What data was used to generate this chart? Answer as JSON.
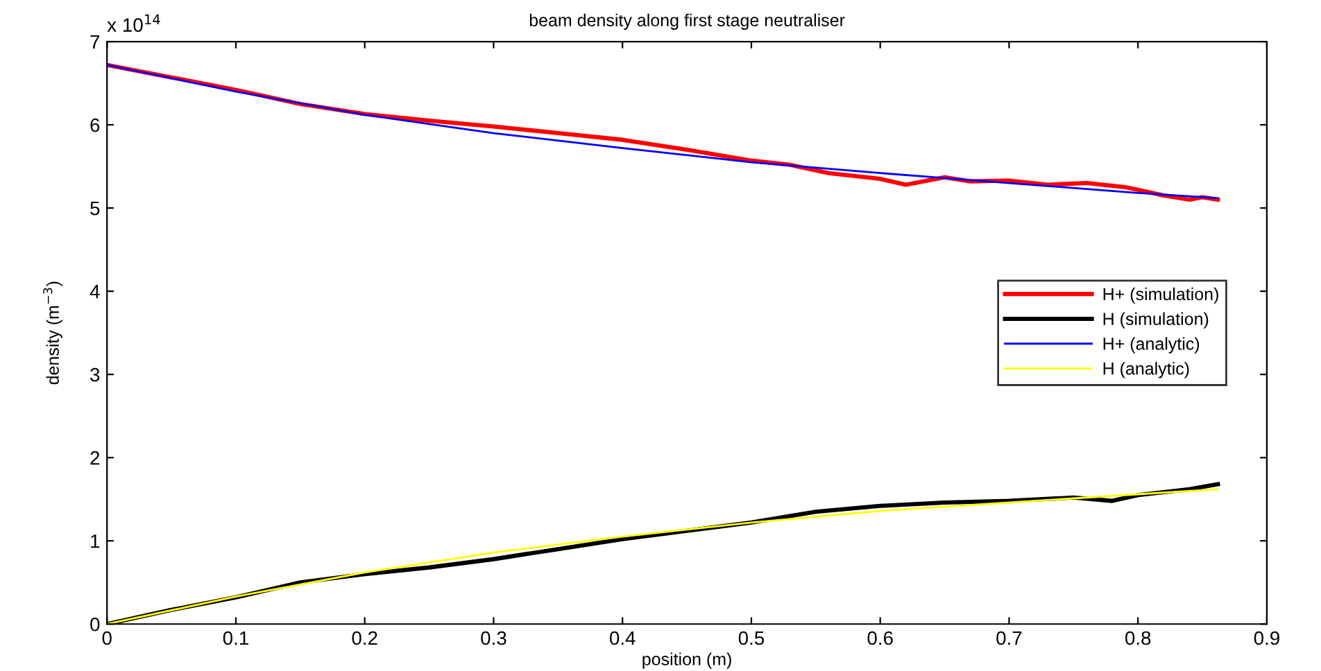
{
  "chart_data": {
    "type": "line",
    "title": "beam density along first stage neutraliser",
    "xlabel": "position (m)",
    "ylabel": "density (m$^{−3}$)",
    "annotations": [
      "x 10$^{14}$"
    ],
    "xlim": [
      0,
      0.9
    ],
    "xticks": [
      0,
      0.1,
      0.2,
      0.3,
      0.4,
      0.5,
      0.6,
      0.7,
      0.8,
      0.9
    ],
    "ylim": [
      0,
      7
    ],
    "yticks": [
      0,
      1,
      2,
      3,
      4,
      5,
      6,
      7
    ],
    "grid": false,
    "legend": "right",
    "marker": "none",
    "line_style": "solid",
    "series": [
      {
        "name": "H+ (simulation)",
        "color": "#ff0000",
        "x": [
          0,
          0.05,
          0.1,
          0.15,
          0.2,
          0.25,
          0.3,
          0.35,
          0.4,
          0.45,
          0.5,
          0.53,
          0.56,
          0.6,
          0.62,
          0.65,
          0.67,
          0.7,
          0.73,
          0.76,
          0.79,
          0.8,
          0.82,
          0.84,
          0.85,
          0.862
        ],
        "values": [
          6.72,
          6.57,
          6.42,
          6.25,
          6.13,
          6.05,
          5.98,
          5.9,
          5.82,
          5.7,
          5.57,
          5.52,
          5.42,
          5.35,
          5.28,
          5.37,
          5.32,
          5.33,
          5.28,
          5.3,
          5.25,
          5.22,
          5.15,
          5.1,
          5.13,
          5.1
        ]
      },
      {
        "name": "H (simulation)",
        "color": "#000000",
        "x": [
          0,
          0.05,
          0.1,
          0.15,
          0.2,
          0.25,
          0.3,
          0.35,
          0.4,
          0.45,
          0.5,
          0.55,
          0.6,
          0.65,
          0.7,
          0.75,
          0.78,
          0.8,
          0.84,
          0.862
        ],
        "values": [
          0,
          0.17,
          0.32,
          0.5,
          0.6,
          0.68,
          0.78,
          0.9,
          1.02,
          1.12,
          1.22,
          1.35,
          1.42,
          1.46,
          1.48,
          1.52,
          1.48,
          1.55,
          1.62,
          1.68
        ]
      },
      {
        "name": "H+ (analytic)",
        "color": "#0000ff",
        "x": [
          0,
          0.1,
          0.2,
          0.3,
          0.4,
          0.5,
          0.6,
          0.7,
          0.8,
          0.862
        ],
        "values": [
          6.72,
          6.4,
          6.12,
          5.9,
          5.72,
          5.55,
          5.42,
          5.3,
          5.18,
          5.12
        ]
      },
      {
        "name": "H (analytic)",
        "color": "#ffff00",
        "x": [
          0,
          0.1,
          0.2,
          0.3,
          0.4,
          0.5,
          0.6,
          0.7,
          0.8,
          0.862
        ],
        "values": [
          0,
          0.33,
          0.62,
          0.86,
          1.05,
          1.22,
          1.36,
          1.46,
          1.56,
          1.62
        ]
      }
    ]
  }
}
